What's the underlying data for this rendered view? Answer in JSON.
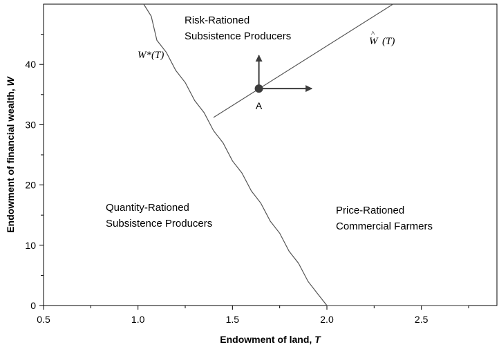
{
  "chart_data": {
    "type": "line",
    "xlabel": "Endowment of land, ",
    "xlabel_var": "T",
    "ylabel": "Endowment of financial wealth, ",
    "ylabel_var": "W",
    "xlim": [
      0.5,
      2.9
    ],
    "ylim": [
      0,
      50
    ],
    "x_ticks": [
      0.5,
      1.0,
      1.5,
      2.0,
      2.5
    ],
    "x_tick_labels": [
      "0.5",
      "1.0",
      "1.5",
      "2.0",
      "2.5"
    ],
    "y_ticks": [
      0,
      10,
      20,
      30,
      40
    ],
    "y_tick_labels": [
      "0",
      "10",
      "20",
      "30",
      "40"
    ],
    "grid": false,
    "series": [
      {
        "name": "W*(T)",
        "x": [
          1.03,
          1.07,
          1.1,
          1.15,
          1.2,
          1.25,
          1.3,
          1.35,
          1.4,
          1.45,
          1.5,
          1.55,
          1.6,
          1.65,
          1.7,
          1.75,
          1.8,
          1.85,
          1.9,
          1.95,
          2.0,
          2.05,
          2.3,
          2.5,
          2.75
        ],
        "y": [
          50,
          48,
          44,
          42,
          39,
          37,
          34,
          32,
          29,
          27,
          24,
          22,
          19,
          17,
          14,
          12,
          9,
          7,
          4,
          2,
          0,
          0,
          0,
          0,
          0
        ]
      },
      {
        "name": "Ŵ(T)",
        "x": [
          1.4,
          2.35
        ],
        "y": [
          31.2,
          50
        ]
      }
    ],
    "curve_labels": {
      "wstar": "W*(T)",
      "what_main": "W",
      "what_arg": "(T)"
    },
    "regions": {
      "risk": [
        "Risk-Rationed",
        "Subsistence Producers"
      ],
      "quantity": [
        "Quantity-Rationed",
        "Subsistence Producers"
      ],
      "price": [
        "Price-Rationed",
        "Commercial Farmers"
      ]
    },
    "point": {
      "label": "A",
      "x": 1.64,
      "y": 36,
      "arrow_up_to_y": 41.5,
      "arrow_right_to_x": 1.92
    }
  }
}
